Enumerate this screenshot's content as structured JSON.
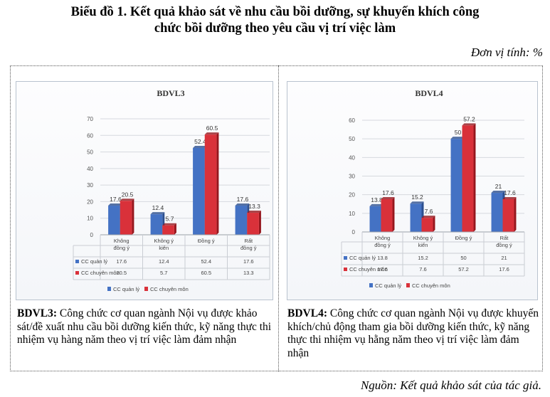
{
  "title_line1": "Biểu đồ 1. Kết quả khảo sát về nhu cầu bồi dưỡng, sự khuyến khích công",
  "title_line2": "chức bồi dưỡng theo yêu cầu vị trí việc làm",
  "unit": "Đơn vị tính: %",
  "source": "Nguồn: Kết quả khảo sát của tác giả.",
  "colors": {
    "cc_quan_ly": "#4472c4",
    "cc_chuyen_mon": "#d9313a"
  },
  "chart_data": [
    {
      "type": "bar",
      "title": "BDVL3",
      "categories": [
        [
          "Không",
          "đồng ý"
        ],
        [
          "Không ý",
          "kiến"
        ],
        [
          "Đồng ý"
        ],
        [
          "Rất",
          "đồng ý"
        ]
      ],
      "series": [
        {
          "name": "CC quản lý",
          "values": [
            17.6,
            12.4,
            52.4,
            17.6
          ],
          "labels": [
            "17.6",
            "12.4",
            "52.4",
            "17.6"
          ]
        },
        {
          "name": "CC chuyên môn",
          "values": [
            20.5,
            5.7,
            60.5,
            13.3
          ],
          "labels": [
            "20.5",
            "5.7",
            "60.5",
            "13.3"
          ]
        }
      ],
      "yticks": [
        "0",
        "10",
        "20",
        "30",
        "40",
        "50",
        "60",
        "70"
      ],
      "ylim": [
        0,
        70
      ],
      "legend": "bottom",
      "data_table": true,
      "grid": true
    },
    {
      "type": "bar",
      "title": "BDVL4",
      "categories": [
        [
          "Không",
          "đồng ý"
        ],
        [
          "Không ý",
          "kiến"
        ],
        [
          "Đồng ý"
        ],
        [
          "Rất",
          "đồng ý"
        ]
      ],
      "series": [
        {
          "name": "CC quản lý",
          "values": [
            13.8,
            15.2,
            50,
            21
          ],
          "labels": [
            "13.8",
            "15.2",
            "50",
            "21"
          ]
        },
        {
          "name": "CC chuyên môn",
          "values": [
            17.6,
            7.6,
            57.2,
            17.6
          ],
          "labels": [
            "17.6",
            "7.6",
            "57.2",
            "17.6"
          ]
        }
      ],
      "yticks": [
        "0",
        "10",
        "20",
        "30",
        "40",
        "50",
        "60"
      ],
      "ylim": [
        0,
        60
      ],
      "legend": "bottom",
      "data_table": true,
      "grid": true
    }
  ],
  "captions": [
    {
      "label": "BDVL3:",
      "text": "Công chức cơ quan ngành Nội vụ được khảo sát/đề xuất nhu cầu bồi dưỡng kiến thức, kỹ năng thực thi nhiệm vụ hàng năm theo vị trí việc làm đảm nhận"
    },
    {
      "label": "BDVL4:",
      "text": "Công chức cơ quan ngành Nội vụ được khuyến khích/chủ động tham gia bồi dưỡng kiến thức, kỹ năng thực thi nhiệm vụ hằng năm theo vị trí việc làm đảm nhận"
    }
  ]
}
